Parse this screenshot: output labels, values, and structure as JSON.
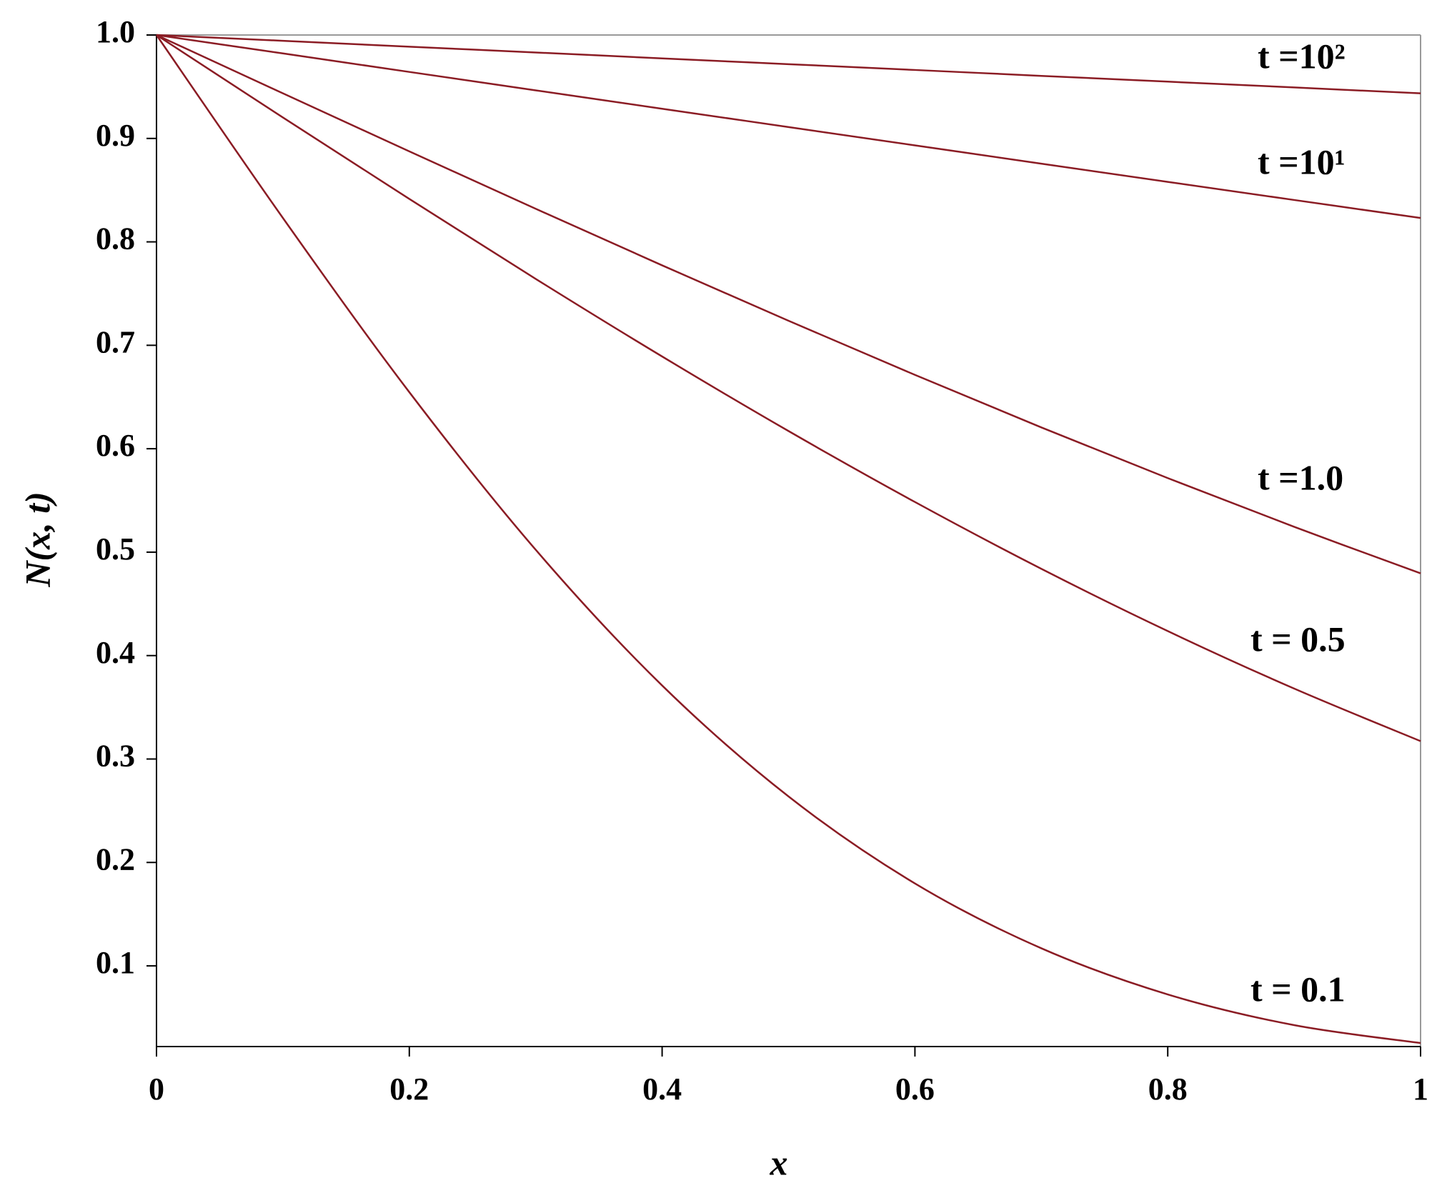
{
  "chart_data": {
    "type": "line",
    "x_label": "x",
    "y_label": "N(x, t)",
    "x": [
      0,
      0.1,
      0.2,
      0.3,
      0.4,
      0.5,
      0.6,
      0.7,
      0.8,
      0.9,
      1.0
    ],
    "series": [
      {
        "name": "t =10²",
        "color": "#8b1c24",
        "values": [
          1,
          0.9944,
          0.9887,
          0.9831,
          0.9774,
          0.9718,
          0.9662,
          0.9605,
          0.9549,
          0.9493,
          0.9436
        ]
      },
      {
        "name": "t =10¹",
        "color": "#8b1c24",
        "values": [
          1,
          0.9822,
          0.9643,
          0.9465,
          0.9287,
          0.911,
          0.8933,
          0.8756,
          0.858,
          0.8405,
          0.8231
        ]
      },
      {
        "name": "t =1.0",
        "color": "#8b1c24",
        "values": [
          1,
          0.9436,
          0.8875,
          0.832,
          0.7773,
          0.7237,
          0.6714,
          0.6206,
          0.5716,
          0.5245,
          0.4795
        ]
      },
      {
        "name": "t = 0.5",
        "color": "#8b1c24",
        "values": [
          1,
          0.9203,
          0.8415,
          0.7642,
          0.6892,
          0.6171,
          0.5485,
          0.4839,
          0.4237,
          0.3681,
          0.3173
        ]
      },
      {
        "name": "t = 0.1",
        "color": "#8b1c24",
        "values": [
          1,
          0.8231,
          0.6547,
          0.5023,
          0.3711,
          0.2638,
          0.1797,
          0.117,
          0.0724,
          0.0427,
          0.0254
        ]
      }
    ],
    "xlim": [
      0,
      1
    ],
    "ylim": [
      0.022,
      1.0
    ],
    "xticks": [
      0,
      0.2,
      0.4,
      0.6,
      0.8,
      1
    ],
    "yticks": [
      0.1,
      0.2,
      0.3,
      0.4,
      0.5,
      0.6,
      0.7,
      0.8,
      0.9,
      {
        "value": 1.0,
        "label": "1.0"
      }
    ],
    "grid": false
  }
}
